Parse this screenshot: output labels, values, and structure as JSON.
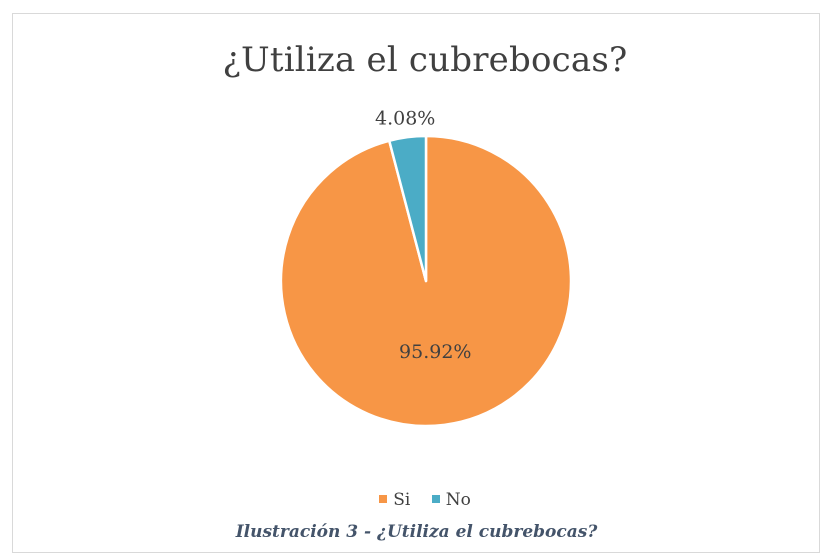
{
  "chart_data": {
    "type": "pie",
    "title": "¿Utiliza el cubrebocas?",
    "categories": [
      "Si",
      "No"
    ],
    "values": [
      95.92,
      4.08
    ],
    "data_labels": [
      "95.92%",
      "4.08%"
    ],
    "colors": [
      "#f79646",
      "#4bacc6"
    ],
    "legend_position": "bottom",
    "start_angle_deg": 0,
    "direction": "clockwise"
  },
  "caption": "Ilustración 3 - ¿Utiliza el cubrebocas?"
}
